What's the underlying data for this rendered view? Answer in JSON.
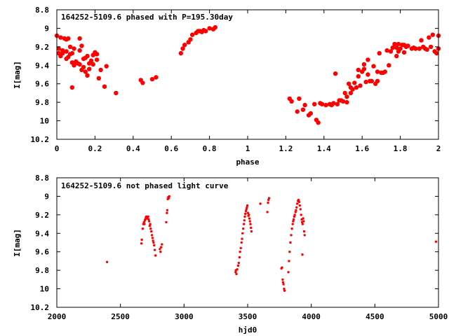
{
  "colors": {
    "points": "#ff0000",
    "axes": "#000000",
    "background": "#ffffff"
  },
  "chart_data": [
    {
      "type": "scatter",
      "title": "164252-5109.6 phased with P=195.30day",
      "xlabel": "phase",
      "ylabel": "I[mag]",
      "xlim": [
        0,
        2
      ],
      "ylim": [
        8.8,
        10.2
      ],
      "y_inverted": true,
      "grid": false,
      "xticks": [
        "0",
        "0.2",
        "0.4",
        "0.6",
        "0.8",
        "1",
        "1.2",
        "1.4",
        "1.6",
        "1.8",
        "2"
      ],
      "yticks": [
        "8.8",
        "9",
        "9.2",
        "9.4",
        "9.6",
        "9.8",
        "10",
        "10.2"
      ],
      "series": [
        {
          "marker": "filled-circle",
          "color": "#ff0000",
          "points": [
            [
              0.0,
              9.08
            ],
            [
              0.01,
              9.22
            ],
            [
              0.01,
              9.27
            ],
            [
              0.02,
              9.1
            ],
            [
              0.02,
              9.3
            ],
            [
              0.03,
              9.24
            ],
            [
              0.03,
              9.27
            ],
            [
              0.04,
              9.11
            ],
            [
              0.05,
              9.33
            ],
            [
              0.05,
              9.25
            ],
            [
              0.05,
              9.12
            ],
            [
              0.06,
              9.11
            ],
            [
              0.06,
              9.31
            ],
            [
              0.07,
              9.2
            ],
            [
              0.07,
              9.28
            ],
            [
              0.08,
              9.37
            ],
            [
              0.08,
              9.27
            ],
            [
              0.08,
              9.64
            ],
            [
              0.09,
              9.22
            ],
            [
              0.09,
              9.4
            ],
            [
              0.1,
              9.36
            ],
            [
              0.11,
              9.38
            ],
            [
              0.12,
              9.11
            ],
            [
              0.12,
              9.39
            ],
            [
              0.12,
              9.24
            ],
            [
              0.13,
              9.19
            ],
            [
              0.13,
              9.45
            ],
            [
              0.14,
              9.33
            ],
            [
              0.14,
              9.42
            ],
            [
              0.15,
              9.47
            ],
            [
              0.15,
              9.32
            ],
            [
              0.16,
              9.51
            ],
            [
              0.16,
              9.3
            ],
            [
              0.17,
              9.44
            ],
            [
              0.17,
              9.38
            ],
            [
              0.18,
              9.35
            ],
            [
              0.19,
              9.39
            ],
            [
              0.19,
              9.29
            ],
            [
              0.2,
              9.26
            ],
            [
              0.21,
              9.34
            ],
            [
              0.21,
              9.28
            ],
            [
              0.22,
              9.54
            ],
            [
              0.23,
              9.45
            ],
            [
              0.25,
              9.63
            ],
            [
              0.26,
              9.41
            ],
            [
              0.31,
              9.7
            ],
            [
              0.44,
              9.56
            ],
            [
              0.45,
              9.59
            ],
            [
              0.5,
              9.55
            ],
            [
              0.52,
              9.53
            ],
            [
              0.65,
              9.27
            ],
            [
              0.66,
              9.22
            ],
            [
              0.67,
              9.18
            ],
            [
              0.69,
              9.15
            ],
            [
              0.7,
              9.12
            ],
            [
              0.71,
              9.07
            ],
            [
              0.73,
              9.05
            ],
            [
              0.74,
              9.03
            ],
            [
              0.75,
              9.03
            ],
            [
              0.76,
              9.04
            ],
            [
              0.77,
              9.02
            ],
            [
              0.78,
              9.03
            ],
            [
              0.8,
              9.0
            ],
            [
              0.82,
              9.01
            ],
            [
              0.83,
              8.99
            ],
            [
              1.22,
              9.76
            ],
            [
              1.23,
              9.79
            ],
            [
              1.26,
              9.9
            ],
            [
              1.27,
              9.76
            ],
            [
              1.29,
              9.88
            ],
            [
              1.3,
              9.83
            ],
            [
              1.32,
              9.94
            ],
            [
              1.33,
              9.92
            ],
            [
              1.35,
              9.82
            ],
            [
              1.36,
              9.99
            ],
            [
              1.37,
              10.02
            ],
            [
              1.38,
              9.81
            ],
            [
              1.39,
              9.82
            ],
            [
              1.41,
              9.83
            ],
            [
              1.43,
              9.82
            ],
            [
              1.44,
              9.83
            ],
            [
              1.45,
              9.81
            ],
            [
              1.46,
              9.49
            ],
            [
              1.47,
              9.82
            ],
            [
              1.48,
              9.78
            ],
            [
              1.49,
              9.78
            ],
            [
              1.5,
              9.79
            ],
            [
              1.51,
              9.7
            ],
            [
              1.52,
              9.74
            ],
            [
              1.52,
              9.8
            ],
            [
              1.53,
              9.6
            ],
            [
              1.54,
              9.64
            ],
            [
              1.54,
              9.7
            ],
            [
              1.55,
              9.66
            ],
            [
              1.56,
              9.59
            ],
            [
              1.57,
              9.64
            ],
            [
              1.58,
              9.45
            ],
            [
              1.58,
              9.52
            ],
            [
              1.59,
              9.62
            ],
            [
              1.6,
              9.47
            ],
            [
              1.61,
              9.44
            ],
            [
              1.61,
              9.39
            ],
            [
              1.62,
              9.58
            ],
            [
              1.63,
              9.34
            ],
            [
              1.63,
              9.5
            ],
            [
              1.64,
              9.57
            ],
            [
              1.65,
              9.57
            ],
            [
              1.66,
              9.41
            ],
            [
              1.67,
              9.6
            ],
            [
              1.68,
              9.47
            ],
            [
              1.68,
              9.57
            ],
            [
              1.69,
              9.27
            ],
            [
              1.7,
              9.48
            ],
            [
              1.71,
              9.48
            ],
            [
              1.72,
              9.47
            ],
            [
              1.73,
              9.24
            ],
            [
              1.74,
              9.4
            ],
            [
              1.75,
              9.25
            ],
            [
              1.76,
              9.21
            ],
            [
              1.77,
              9.17
            ],
            [
              1.78,
              9.3
            ],
            [
              1.78,
              9.21
            ],
            [
              1.79,
              9.17
            ],
            [
              1.79,
              9.25
            ],
            [
              1.8,
              9.22
            ],
            [
              1.81,
              9.18
            ],
            [
              1.82,
              9.26
            ],
            [
              1.82,
              9.18
            ],
            [
              1.83,
              9.2
            ],
            [
              1.84,
              9.19
            ],
            [
              1.86,
              9.22
            ],
            [
              1.87,
              9.21
            ],
            [
              1.88,
              9.22
            ],
            [
              1.9,
              9.22
            ],
            [
              1.91,
              9.13
            ],
            [
              1.92,
              9.2
            ],
            [
              1.93,
              9.22
            ],
            [
              1.94,
              9.23
            ],
            [
              1.95,
              9.1
            ],
            [
              1.96,
              9.2
            ],
            [
              1.97,
              9.07
            ],
            [
              1.98,
              9.25
            ],
            [
              1.99,
              9.27
            ],
            [
              2.0,
              9.08
            ],
            [
              2.0,
              9.22
            ]
          ]
        }
      ]
    },
    {
      "type": "scatter",
      "title": "164252-5109.6 not phased light curve",
      "xlabel": "hjd0",
      "ylabel": "I[mag]",
      "xlim": [
        2000,
        5000
      ],
      "ylim": [
        8.8,
        10.2
      ],
      "y_inverted": true,
      "grid": false,
      "xticks": [
        "2000",
        "2500",
        "3000",
        "3500",
        "4000",
        "4500",
        "5000"
      ],
      "yticks": [
        "8.8",
        "9",
        "9.2",
        "9.4",
        "9.6",
        "9.8",
        "10",
        "10.2"
      ],
      "series": [
        {
          "marker": "small-filled-circle",
          "color": "#ff0000",
          "points": [
            [
              2395,
              9.71
            ],
            [
              2665,
              9.51
            ],
            [
              2668,
              9.47
            ],
            [
              2675,
              9.35
            ],
            [
              2680,
              9.3
            ],
            [
              2685,
              9.28
            ],
            [
              2688,
              9.3
            ],
            [
              2692,
              9.26
            ],
            [
              2695,
              9.25
            ],
            [
              2700,
              9.23
            ],
            [
              2703,
              9.22
            ],
            [
              2706,
              9.23
            ],
            [
              2710,
              9.24
            ],
            [
              2713,
              9.23
            ],
            [
              2718,
              9.22
            ],
            [
              2722,
              9.25
            ],
            [
              2726,
              9.27
            ],
            [
              2730,
              9.32
            ],
            [
              2734,
              9.3
            ],
            [
              2738,
              9.35
            ],
            [
              2743,
              9.38
            ],
            [
              2748,
              9.42
            ],
            [
              2752,
              9.45
            ],
            [
              2756,
              9.48
            ],
            [
              2760,
              9.5
            ],
            [
              2765,
              9.53
            ],
            [
              2770,
              9.58
            ],
            [
              2776,
              9.64
            ],
            [
              2810,
              9.57
            ],
            [
              2815,
              9.6
            ],
            [
              2820,
              9.55
            ],
            [
              2826,
              9.52
            ],
            [
              2860,
              9.28
            ],
            [
              2865,
              9.18
            ],
            [
              2868,
              9.15
            ],
            [
              2872,
              9.03
            ],
            [
              2876,
              9.01
            ],
            [
              2880,
              9.02
            ],
            [
              2884,
              9.0
            ],
            [
              3405,
              9.82
            ],
            [
              3408,
              9.8
            ],
            [
              3412,
              9.84
            ],
            [
              3418,
              9.79
            ],
            [
              3425,
              9.75
            ],
            [
              3430,
              9.72
            ],
            [
              3436,
              9.66
            ],
            [
              3440,
              9.6
            ],
            [
              3446,
              9.56
            ],
            [
              3452,
              9.5
            ],
            [
              3456,
              9.46
            ],
            [
              3460,
              9.4
            ],
            [
              3465,
              9.35
            ],
            [
              3470,
              9.3
            ],
            [
              3474,
              9.26
            ],
            [
              3478,
              9.22
            ],
            [
              3482,
              9.19
            ],
            [
              3486,
              9.16
            ],
            [
              3490,
              9.14
            ],
            [
              3494,
              9.12
            ],
            [
              3498,
              9.1
            ],
            [
              3502,
              9.18
            ],
            [
              3506,
              9.21
            ],
            [
              3510,
              9.2
            ],
            [
              3514,
              9.24
            ],
            [
              3518,
              9.27
            ],
            [
              3522,
              9.3
            ],
            [
              3526,
              9.34
            ],
            [
              3530,
              9.38
            ],
            [
              3600,
              9.08
            ],
            [
              3655,
              9.17
            ],
            [
              3660,
              9.07
            ],
            [
              3664,
              9.04
            ],
            [
              3668,
              9.02
            ],
            [
              3765,
              9.78
            ],
            [
              3770,
              9.77
            ],
            [
              3775,
              9.9
            ],
            [
              3778,
              9.93
            ],
            [
              3782,
              9.95
            ],
            [
              3786,
              10.0
            ],
            [
              3790,
              10.02
            ],
            [
              3820,
              9.82
            ],
            [
              3825,
              9.7
            ],
            [
              3830,
              9.6
            ],
            [
              3836,
              9.5
            ],
            [
              3842,
              9.42
            ],
            [
              3848,
              9.35
            ],
            [
              3854,
              9.3
            ],
            [
              3858,
              9.27
            ],
            [
              3862,
              9.25
            ],
            [
              3866,
              9.22
            ],
            [
              3870,
              9.2
            ],
            [
              3876,
              9.17
            ],
            [
              3880,
              9.15
            ],
            [
              3885,
              9.12
            ],
            [
              3890,
              9.08
            ],
            [
              3895,
              9.05
            ],
            [
              3900,
              9.04
            ],
            [
              3905,
              9.06
            ],
            [
              3910,
              9.1
            ],
            [
              3915,
              9.14
            ],
            [
              3920,
              9.2
            ],
            [
              3925,
              9.25
            ],
            [
              3928,
              9.28
            ],
            [
              3932,
              9.3
            ],
            [
              3936,
              9.24
            ],
            [
              3940,
              9.27
            ],
            [
              3944,
              9.38
            ],
            [
              3948,
              9.42
            ],
            [
              3930,
              9.63
            ],
            [
              4980,
              9.49
            ]
          ]
        }
      ]
    }
  ]
}
